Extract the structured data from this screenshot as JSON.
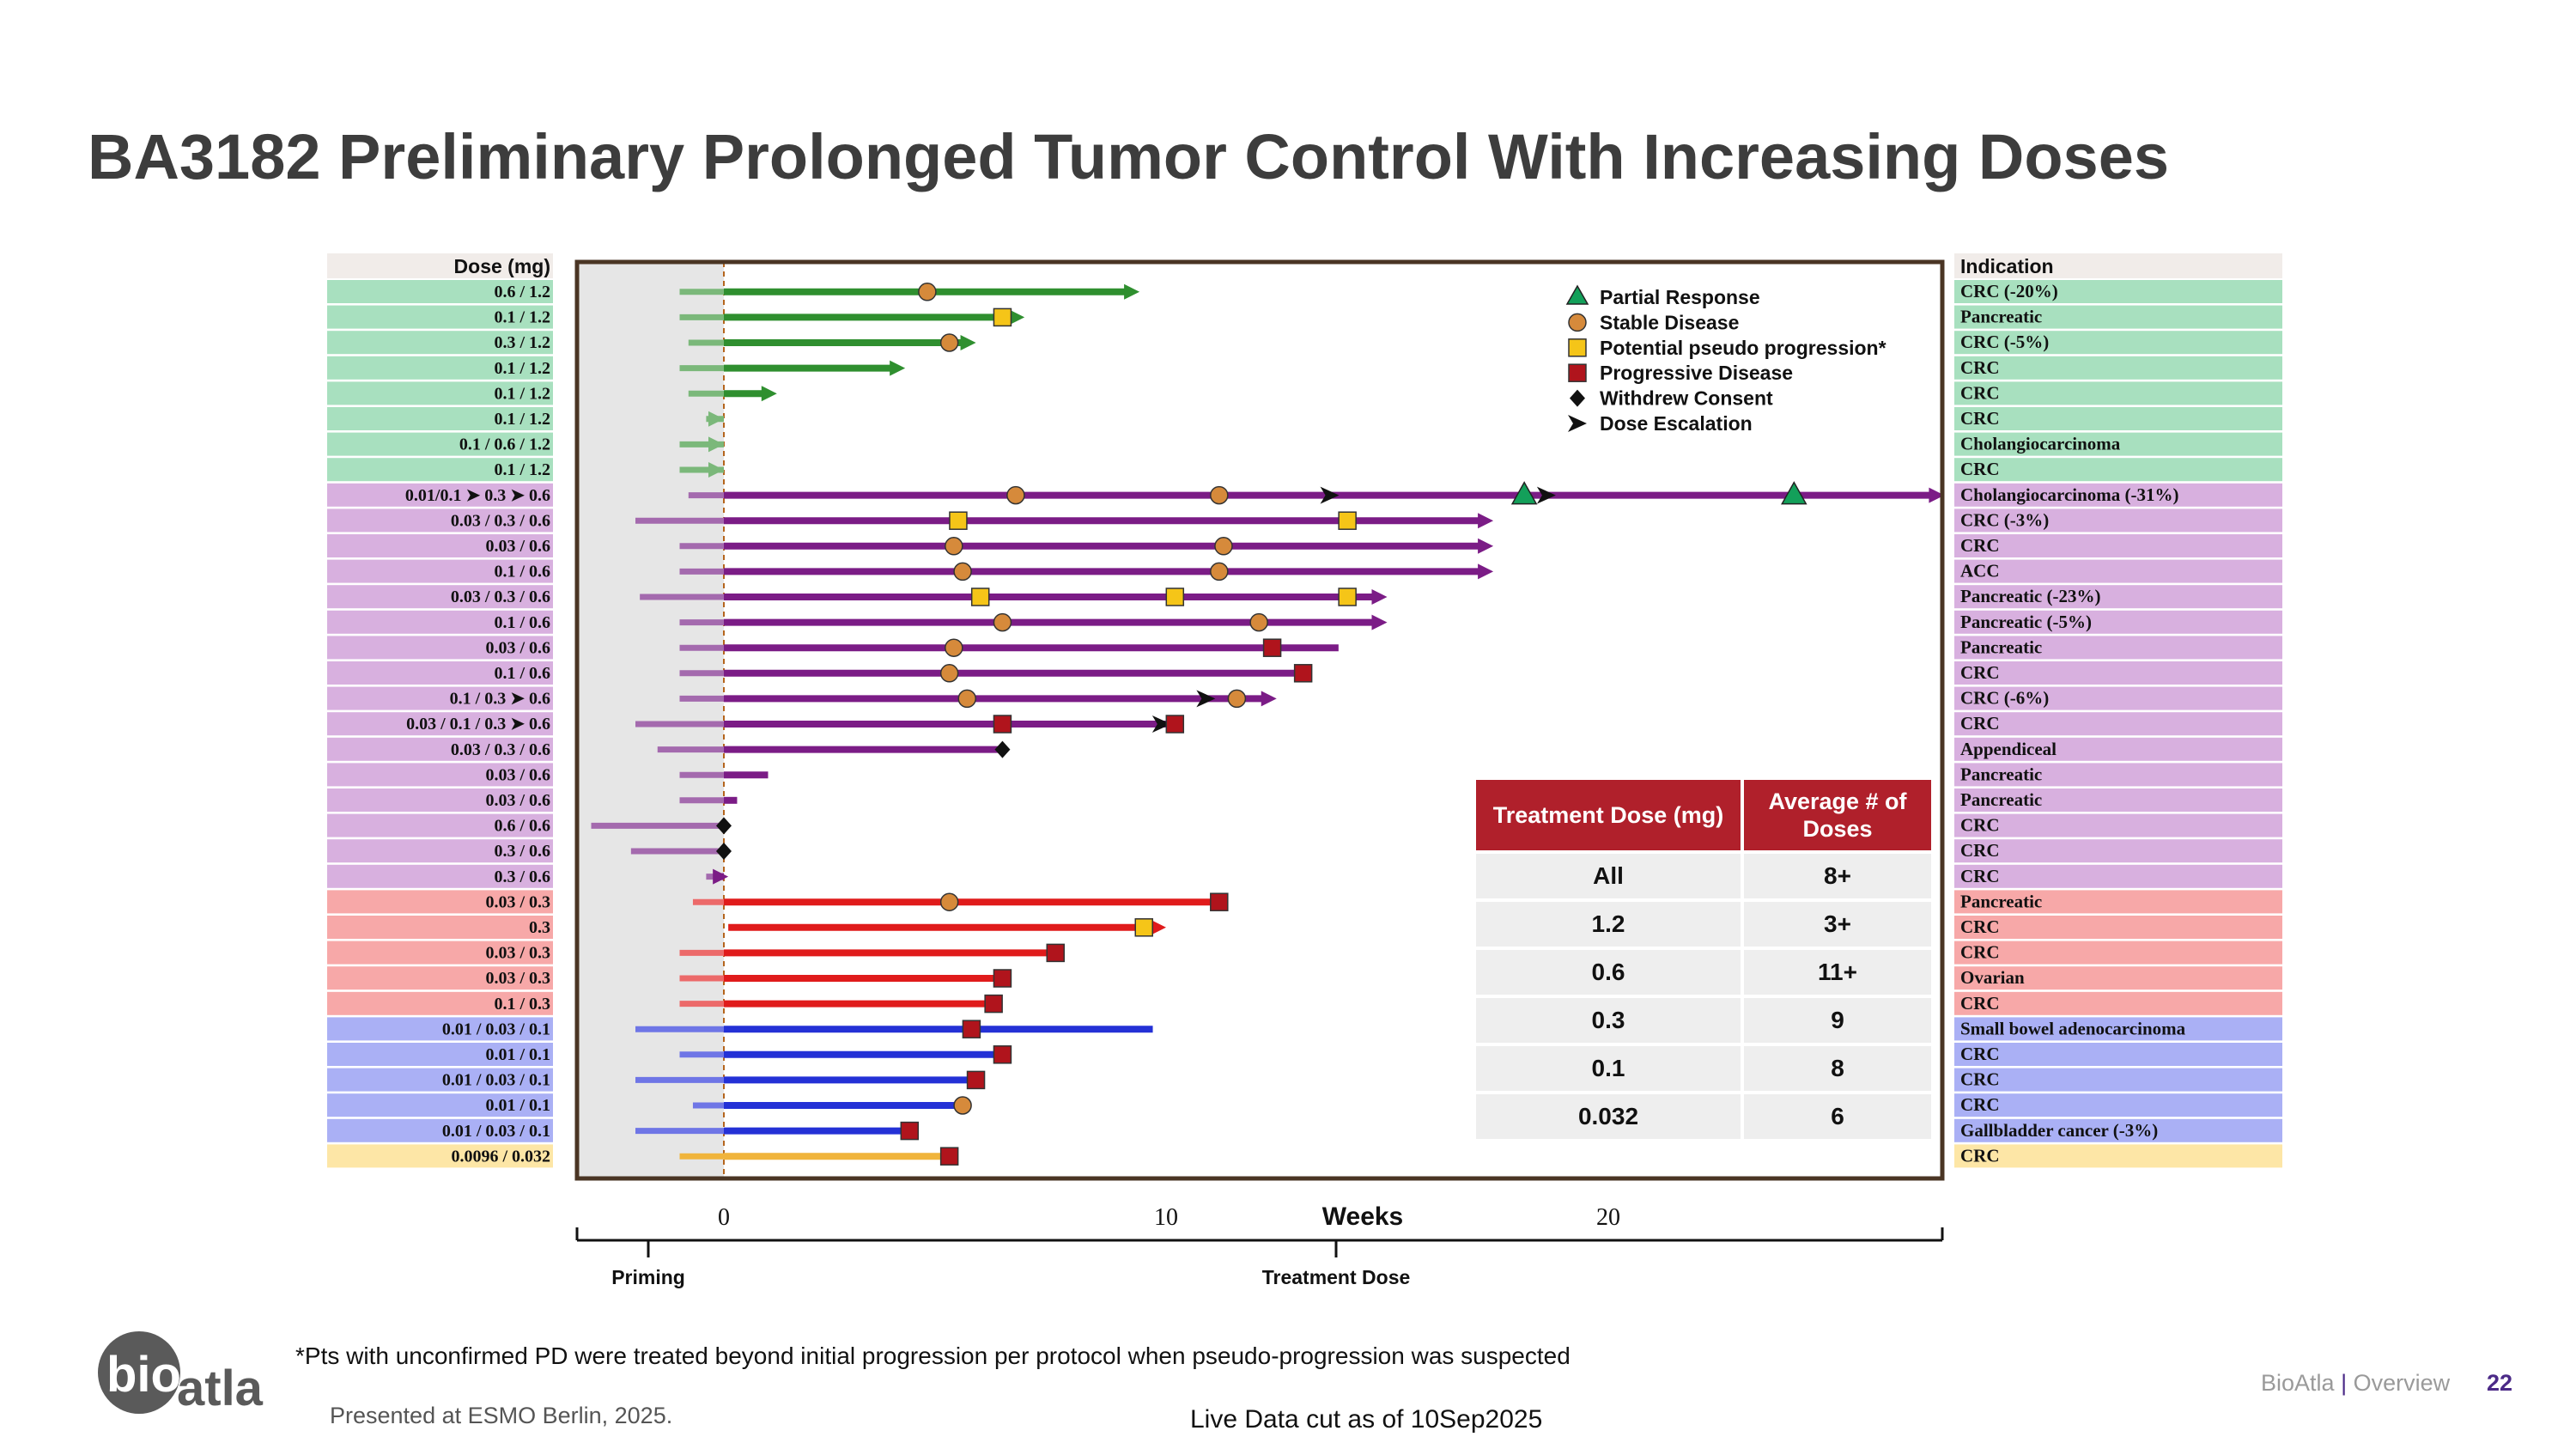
{
  "title": "BA3182 Preliminary Prolonged Tumor Control With Increasing Doses",
  "chart_data": {
    "type": "swimmer",
    "title": "",
    "dose_header": "Dose (mg)",
    "indication_header": "Indication",
    "xlabel": "Weeks",
    "xlim": [
      -3.4,
      27.7
    ],
    "xticks": [
      0,
      10,
      20
    ],
    "phase_labels": {
      "priming": "Priming",
      "treatment": "Treatment Dose"
    },
    "group_colors": {
      "1.2": {
        "row": "#a8e0bf",
        "bar": "#2f8f2f",
        "prime": "#7bb87a"
      },
      "0.6": {
        "row": "#d8b0df",
        "bar": "#7b1c86",
        "prime": "#a46aae"
      },
      "0.3": {
        "row": "#f7a8a8",
        "bar": "#e01b1b",
        "prime": "#ec6a6a"
      },
      "0.1": {
        "row": "#aab0f5",
        "bar": "#2431d6",
        "prime": "#6f76e6"
      },
      "0.032": {
        "row": "#fde6a6",
        "bar": "#f0b43c",
        "prime": "#f0b43c"
      }
    },
    "marker_colors": {
      "partial_response": "#13a05a",
      "stable_disease": "#d68a3b",
      "pseudo_progression": "#f5c518",
      "progressive_disease": "#b0141c",
      "withdrew_consent": "#111111",
      "dose_escalation": "#111111"
    },
    "legend": [
      {
        "type": "partial_response",
        "label": "Partial Response"
      },
      {
        "type": "stable_disease",
        "label": "Stable Disease"
      },
      {
        "type": "pseudo_progression",
        "label": "Potential pseudo progression*"
      },
      {
        "type": "progressive_disease",
        "label": "Progressive Disease"
      },
      {
        "type": "withdrew_consent",
        "label": "Withdrew Consent"
      },
      {
        "type": "dose_escalation",
        "label": "Dose Escalation"
      }
    ],
    "patients": [
      {
        "dose": "0.6 / 1.2",
        "indication": "CRC",
        "response": "(-20%)",
        "group": "1.2",
        "start": -1,
        "end": 9.4,
        "arrow": true,
        "markers": [
          {
            "type": "stable_disease",
            "week": 4.6
          }
        ]
      },
      {
        "dose": "0.1 / 1.2",
        "indication": "Pancreatic",
        "response": "",
        "group": "1.2",
        "start": -1,
        "end": 6.8,
        "arrow": true,
        "markers": [
          {
            "type": "pseudo_progression",
            "week": 6.3
          }
        ]
      },
      {
        "dose": "0.3 / 1.2",
        "indication": "CRC",
        "response": "(-5%)",
        "group": "1.2",
        "start": -0.8,
        "end": 5.7,
        "arrow": true,
        "markers": [
          {
            "type": "stable_disease",
            "week": 5.1
          }
        ]
      },
      {
        "dose": "0.1 / 1.2",
        "indication": "CRC",
        "response": "",
        "group": "1.2",
        "start": -1,
        "end": 4.1,
        "arrow": true,
        "markers": []
      },
      {
        "dose": "0.1 / 1.2",
        "indication": "CRC",
        "response": "",
        "group": "1.2",
        "start": -0.8,
        "end": 1.2,
        "arrow": true,
        "markers": []
      },
      {
        "dose": "0.1 / 1.2",
        "indication": "CRC",
        "response": "",
        "group": "1.2",
        "start": -0.4,
        "end": 0,
        "arrow": true,
        "markers": []
      },
      {
        "dose": "0.1 / 0.6 / 1.2",
        "indication": "Cholangiocarcinoma",
        "response": "",
        "group": "1.2",
        "start": -1,
        "end": 0,
        "arrow": true,
        "markers": []
      },
      {
        "dose": "0.1 / 1.2",
        "indication": "CRC",
        "response": "",
        "group": "1.2",
        "start": -1,
        "end": 0,
        "arrow": true,
        "markers": []
      },
      {
        "dose": "0.01/0.1 ➤ 0.3 ➤ 0.6",
        "indication": "Cholangiocarcinoma",
        "response": "(-31%)",
        "group": "0.6",
        "start": -0.8,
        "end": 27.6,
        "arrow": true,
        "markers": [
          {
            "type": "stable_disease",
            "week": 6.6
          },
          {
            "type": "stable_disease",
            "week": 11.2
          },
          {
            "type": "dose_escalation",
            "week": 13.7
          },
          {
            "type": "partial_response",
            "week": 18.1
          },
          {
            "type": "dose_escalation",
            "week": 18.6
          },
          {
            "type": "partial_response",
            "week": 24.2
          }
        ]
      },
      {
        "dose": "0.03 / 0.3 / 0.6",
        "indication": "CRC",
        "response": "(-3%)",
        "group": "0.6",
        "start": -2,
        "end": 17.4,
        "arrow": true,
        "markers": [
          {
            "type": "pseudo_progression",
            "week": 5.3
          },
          {
            "type": "pseudo_progression",
            "week": 14.1
          }
        ]
      },
      {
        "dose": "0.03 / 0.6",
        "indication": "CRC",
        "response": "",
        "group": "0.6",
        "start": -1,
        "end": 17.4,
        "arrow": true,
        "markers": [
          {
            "type": "stable_disease",
            "week": 5.2
          },
          {
            "type": "stable_disease",
            "week": 11.3
          }
        ]
      },
      {
        "dose": "0.1 / 0.6",
        "indication": "ACC",
        "response": "",
        "group": "0.6",
        "start": -1,
        "end": 17.4,
        "arrow": true,
        "markers": [
          {
            "type": "stable_disease",
            "week": 5.4
          },
          {
            "type": "stable_disease",
            "week": 11.2
          }
        ]
      },
      {
        "dose": "0.03 / 0.3 / 0.6",
        "indication": "Pancreatic",
        "response": "(-23%)",
        "group": "0.6",
        "start": -1.9,
        "end": 15,
        "arrow": true,
        "markers": [
          {
            "type": "pseudo_progression",
            "week": 5.8
          },
          {
            "type": "pseudo_progression",
            "week": 10.2
          },
          {
            "type": "pseudo_progression",
            "week": 14.1
          }
        ]
      },
      {
        "dose": "0.1 / 0.6",
        "indication": "Pancreatic",
        "response": "(-5%)",
        "group": "0.6",
        "start": -1,
        "end": 15,
        "arrow": true,
        "markers": [
          {
            "type": "stable_disease",
            "week": 6.3
          },
          {
            "type": "stable_disease",
            "week": 12.1
          }
        ]
      },
      {
        "dose": "0.03 / 0.6",
        "indication": "Pancreatic",
        "response": "",
        "group": "0.6",
        "start": -1,
        "end": 13.9,
        "arrow": false,
        "markers": [
          {
            "type": "stable_disease",
            "week": 5.2
          },
          {
            "type": "progressive_disease",
            "week": 12.4
          }
        ]
      },
      {
        "dose": "0.1 / 0.6",
        "indication": "CRC",
        "response": "",
        "group": "0.6",
        "start": -1,
        "end": 13.3,
        "arrow": false,
        "markers": [
          {
            "type": "stable_disease",
            "week": 5.1
          },
          {
            "type": "progressive_disease",
            "week": 13.1
          }
        ]
      },
      {
        "dose": "0.1 / 0.3 ➤ 0.6",
        "indication": "CRC",
        "response": "(-6%)",
        "group": "0.6",
        "start": -1,
        "end": 12.5,
        "arrow": true,
        "markers": [
          {
            "type": "stable_disease",
            "week": 5.5
          },
          {
            "type": "dose_escalation",
            "week": 10.9
          },
          {
            "type": "stable_disease",
            "week": 11.6
          }
        ]
      },
      {
        "dose": "0.03 / 0.1 / 0.3 ➤ 0.6",
        "indication": "CRC",
        "response": "",
        "group": "0.6",
        "start": -2,
        "end": 10.1,
        "arrow": false,
        "markers": [
          {
            "type": "progressive_disease",
            "week": 6.3
          },
          {
            "type": "dose_escalation",
            "week": 9.9
          },
          {
            "type": "progressive_disease",
            "week": 10.2
          }
        ]
      },
      {
        "dose": "0.03 / 0.3 / 0.6",
        "indication": "Appendiceal",
        "response": "",
        "group": "0.6",
        "start": -1.5,
        "end": 6.3,
        "arrow": false,
        "markers": [
          {
            "type": "withdrew_consent",
            "week": 6.3
          }
        ]
      },
      {
        "dose": "0.03 / 0.6",
        "indication": "Pancreatic",
        "response": "",
        "group": "0.6",
        "start": -1,
        "end": 1,
        "arrow": false,
        "markers": []
      },
      {
        "dose": "0.03 / 0.6",
        "indication": "Pancreatic",
        "response": "",
        "group": "0.6",
        "start": -1,
        "end": 0.3,
        "arrow": false,
        "markers": []
      },
      {
        "dose": "0.6 / 0.6",
        "indication": "CRC",
        "response": "",
        "group": "0.6",
        "start": -3,
        "end": 0,
        "arrow": false,
        "markers": [
          {
            "type": "withdrew_consent",
            "week": 0
          }
        ]
      },
      {
        "dose": "0.3 / 0.6",
        "indication": "CRC",
        "response": "",
        "group": "0.6",
        "start": -2.1,
        "end": 0,
        "arrow": false,
        "markers": [
          {
            "type": "withdrew_consent",
            "week": 0
          }
        ]
      },
      {
        "dose": "0.3 / 0.6",
        "indication": "CRC",
        "response": "",
        "group": "0.6",
        "start": -0.4,
        "end": 0.1,
        "arrow": true,
        "markers": []
      },
      {
        "dose": "0.03 / 0.3",
        "indication": "Pancreatic",
        "response": "",
        "group": "0.3",
        "start": -0.7,
        "end": 11.2,
        "arrow": false,
        "markers": [
          {
            "type": "stable_disease",
            "week": 5.1
          },
          {
            "type": "progressive_disease",
            "week": 11.2
          }
        ]
      },
      {
        "dose": "0.3",
        "indication": "CRC",
        "response": "",
        "group": "0.3",
        "start": 0.1,
        "end": 10,
        "arrow": true,
        "markers": [
          {
            "type": "pseudo_progression",
            "week": 9.5
          }
        ]
      },
      {
        "dose": "0.03 / 0.3",
        "indication": "CRC",
        "response": "",
        "group": "0.3",
        "start": -1,
        "end": 7.5,
        "arrow": false,
        "markers": [
          {
            "type": "progressive_disease",
            "week": 7.5
          }
        ]
      },
      {
        "dose": "0.03 / 0.3",
        "indication": "Ovarian",
        "response": "",
        "group": "0.3",
        "start": -1,
        "end": 6.3,
        "arrow": false,
        "markers": [
          {
            "type": "progressive_disease",
            "week": 6.3
          }
        ]
      },
      {
        "dose": "0.1 / 0.3",
        "indication": "CRC",
        "response": "",
        "group": "0.3",
        "start": -1,
        "end": 6.3,
        "arrow": false,
        "markers": [
          {
            "type": "progressive_disease",
            "week": 6.1
          }
        ]
      },
      {
        "dose": "0.01 / 0.03 / 0.1",
        "indication": "Small bowel adenocarcinoma",
        "response": "",
        "group": "0.1",
        "start": -2,
        "end": 9.7,
        "arrow": false,
        "markers": [
          {
            "type": "progressive_disease",
            "week": 5.6
          }
        ]
      },
      {
        "dose": "0.01 / 0.1",
        "indication": "CRC",
        "response": "",
        "group": "0.1",
        "start": -1,
        "end": 6.3,
        "arrow": false,
        "markers": [
          {
            "type": "progressive_disease",
            "week": 6.3
          }
        ]
      },
      {
        "dose": "0.01 / 0.03 / 0.1",
        "indication": "CRC",
        "response": "",
        "group": "0.1",
        "start": -2,
        "end": 5.7,
        "arrow": false,
        "markers": [
          {
            "type": "progressive_disease",
            "week": 5.7
          }
        ]
      },
      {
        "dose": "0.01 / 0.1",
        "indication": "CRC",
        "response": "",
        "group": "0.1",
        "start": -0.7,
        "end": 5.4,
        "arrow": false,
        "markers": [
          {
            "type": "stable_disease",
            "week": 5.4
          }
        ]
      },
      {
        "dose": "0.01 / 0.03 / 0.1",
        "indication": "Gallbladder cancer",
        "response": "(-3%)",
        "group": "0.1",
        "start": -2,
        "end": 4.2,
        "arrow": false,
        "markers": [
          {
            "type": "progressive_disease",
            "week": 4.2
          }
        ]
      },
      {
        "dose": "0.0096 / 0.032",
        "indication": "CRC",
        "response": "",
        "group": "0.032",
        "start": -1,
        "end": 5.1,
        "arrow": false,
        "markers": [
          {
            "type": "progressive_disease",
            "week": 5.1
          }
        ]
      }
    ]
  },
  "dose_table": {
    "headers": [
      "Treatment Dose (mg)",
      "Average # of Doses"
    ],
    "rows": [
      [
        "All",
        "8+"
      ],
      [
        "1.2",
        "3+"
      ],
      [
        "0.6",
        "11+"
      ],
      [
        "0.3",
        "9"
      ],
      [
        "0.1",
        "8"
      ],
      [
        "0.032",
        "6"
      ]
    ]
  },
  "footnote": "*Pts with unconfirmed PD were treated beyond initial progression per protocol when pseudo-progression was suspected",
  "presented": "Presented at ESMO Berlin, 2025.",
  "data_cut": "Live Data cut as of 10Sep2025",
  "brand": {
    "name": "BioAtla",
    "separator": "|",
    "section": "Overview"
  },
  "page_number": "22",
  "logo": {
    "part1": "bio",
    "part2": "atla"
  }
}
